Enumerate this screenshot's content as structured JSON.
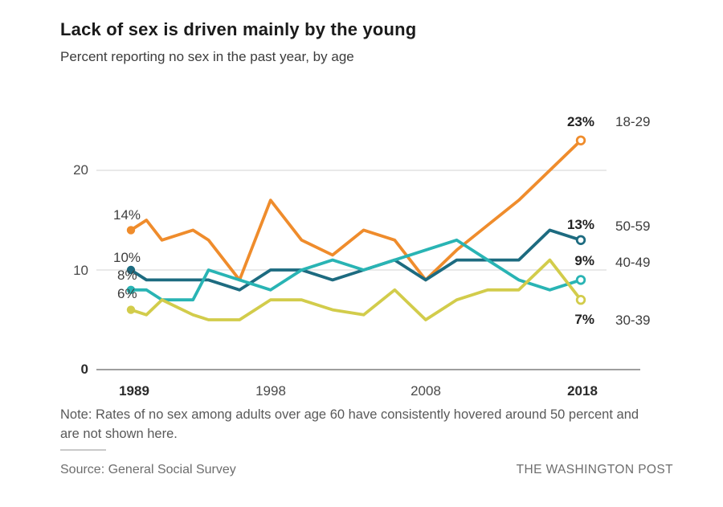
{
  "header": {
    "title": "Lack of sex is driven mainly by the young",
    "subtitle": "Percent reporting no sex in the past year, by age"
  },
  "chart_data": {
    "type": "line",
    "x": [
      1989,
      1990,
      1991,
      1993,
      1994,
      1996,
      1998,
      2000,
      2002,
      2004,
      2006,
      2008,
      2010,
      2012,
      2014,
      2016,
      2018
    ],
    "series": [
      {
        "name": "18-29",
        "color": "#ef8c2c",
        "values": [
          14,
          15,
          13,
          14,
          13,
          9,
          17,
          13,
          11.5,
          14,
          13,
          9,
          12,
          14.5,
          17,
          20,
          23
        ],
        "start_label": "14%",
        "end_label": "23%"
      },
      {
        "name": "50-59",
        "color": "#1d6b80",
        "values": [
          10,
          9,
          9,
          9,
          9,
          8,
          10,
          10,
          9,
          10,
          11,
          9,
          11,
          11,
          11,
          14,
          13
        ],
        "start_label": "10%",
        "end_label": "13%"
      },
      {
        "name": "40-49",
        "color": "#29b4b4",
        "values": [
          8,
          8,
          7,
          7,
          10,
          9,
          8,
          10,
          11,
          10,
          11,
          12,
          13,
          11,
          9,
          8,
          9
        ],
        "start_label": "8%",
        "end_label": "9%"
      },
      {
        "name": "30-39",
        "color": "#d2cc4b",
        "values": [
          6,
          5.5,
          7,
          5.5,
          5,
          5,
          7,
          7,
          6,
          5.5,
          8,
          5,
          7,
          8,
          8,
          11,
          7
        ],
        "start_label": "6%",
        "end_label": "7%"
      }
    ],
    "ylim": [
      0,
      24
    ],
    "yticks": [
      0,
      10,
      20
    ],
    "ytick_labels": [
      "0",
      "10",
      "20"
    ],
    "xticks": [
      1989,
      1998,
      2008,
      2018
    ],
    "xtick_labels": [
      "1989",
      "1998",
      "2008",
      "2018"
    ],
    "grid": "horizontal",
    "legend_position": "right-of-line-ends",
    "grid_color": "#dcdcdc",
    "axis_color": "#9e9e9e"
  },
  "footer": {
    "note": "Note: Rates of no sex among adults over age 60 have consistently hovered around 50 percent and are not shown here.",
    "source": "Source: General Social Survey",
    "credit": "THE WASHINGTON POST"
  }
}
